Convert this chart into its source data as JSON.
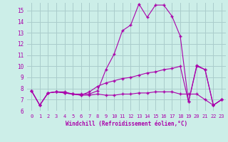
{
  "xlabel": "Windchill (Refroidissement éolien,°C)",
  "background_color": "#cceee8",
  "grid_color": "#aacccc",
  "line_color": "#aa00aa",
  "xlim": [
    -0.5,
    23.5
  ],
  "ylim": [
    6,
    15.7
  ],
  "yticks": [
    6,
    7,
    8,
    9,
    10,
    11,
    12,
    13,
    14,
    15
  ],
  "xticks": [
    0,
    1,
    2,
    3,
    4,
    5,
    6,
    7,
    8,
    9,
    10,
    11,
    12,
    13,
    14,
    15,
    16,
    17,
    18,
    19,
    20,
    21,
    22,
    23
  ],
  "series1_x": [
    0,
    1,
    2,
    3,
    4,
    5,
    6,
    7,
    8,
    9,
    10,
    11,
    12,
    13,
    14,
    15,
    16,
    17,
    18,
    19,
    20,
    21,
    22,
    23
  ],
  "series1_y": [
    7.8,
    6.5,
    7.6,
    7.7,
    7.7,
    7.5,
    7.5,
    7.5,
    7.8,
    9.7,
    11.1,
    13.2,
    13.7,
    15.6,
    14.4,
    15.5,
    15.5,
    14.5,
    12.7,
    6.8,
    10.1,
    9.7,
    6.5,
    7.0
  ],
  "series2_x": [
    0,
    1,
    2,
    3,
    4,
    5,
    6,
    7,
    8,
    9,
    10,
    11,
    12,
    13,
    14,
    15,
    16,
    17,
    18,
    19,
    20,
    21,
    22,
    23
  ],
  "series2_y": [
    7.8,
    6.5,
    7.6,
    7.7,
    7.6,
    7.5,
    7.4,
    7.7,
    8.2,
    8.5,
    8.7,
    8.9,
    9.0,
    9.2,
    9.4,
    9.5,
    9.7,
    9.8,
    10.0,
    6.8,
    10.0,
    9.7,
    6.5,
    7.0
  ],
  "series3_x": [
    0,
    1,
    2,
    3,
    4,
    5,
    6,
    7,
    8,
    9,
    10,
    11,
    12,
    13,
    14,
    15,
    16,
    17,
    18,
    19,
    20,
    21,
    22,
    23
  ],
  "series3_y": [
    7.8,
    6.5,
    7.6,
    7.7,
    7.6,
    7.5,
    7.4,
    7.4,
    7.5,
    7.4,
    7.4,
    7.5,
    7.5,
    7.6,
    7.6,
    7.7,
    7.7,
    7.7,
    7.5,
    7.5,
    7.5,
    7.0,
    6.5,
    7.0
  ]
}
